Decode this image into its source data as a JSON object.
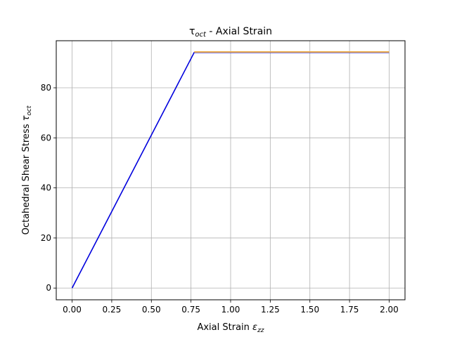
{
  "chart_data": {
    "type": "line",
    "title": {
      "symbol": "τ",
      "subscript": "oct",
      "rest": " - Axial Strain"
    },
    "xlabel": {
      "text": "Axial Strain ",
      "symbol": "ε",
      "subscript": "zz"
    },
    "ylabel": {
      "text": "Octahedral Shear Stress ",
      "symbol": "τ",
      "subscript": "oct"
    },
    "xlim": [
      -0.1,
      2.1
    ],
    "ylim": [
      -4.7,
      98.8
    ],
    "xticks": [
      0.0,
      0.25,
      0.5,
      0.75,
      1.0,
      1.25,
      1.5,
      1.75,
      2.0
    ],
    "xtick_labels": [
      "0.00",
      "0.25",
      "0.50",
      "0.75",
      "1.00",
      "1.25",
      "1.50",
      "1.75",
      "2.00"
    ],
    "yticks": [
      0,
      20,
      40,
      60,
      80
    ],
    "ytick_labels": [
      "0",
      "20",
      "40",
      "60",
      "80"
    ],
    "grid": true,
    "series": [
      {
        "color": "#0000dd",
        "x": [
          0.0,
          0.77,
          2.0
        ],
        "y": [
          0.0,
          94.1,
          94.1
        ]
      },
      {
        "color": "#e8a94a",
        "x": [
          0.77,
          2.0
        ],
        "y": [
          94.3,
          94.3
        ]
      }
    ]
  }
}
